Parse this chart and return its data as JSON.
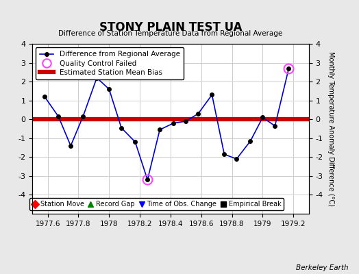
{
  "title": "STONY PLAIN TEST UA",
  "subtitle": "Difference of Station Temperature Data from Regional Average",
  "ylabel_right": "Monthly Temperature Anomaly Difference (°C)",
  "background_color": "#e8e8e8",
  "plot_bg_color": "#ffffff",
  "xlim": [
    1977.5,
    1979.3
  ],
  "ylim": [
    -5,
    4
  ],
  "yticks": [
    -4,
    -3,
    -2,
    -1,
    0,
    1,
    2,
    3,
    4
  ],
  "xticks": [
    1977.6,
    1977.8,
    1978.0,
    1978.2,
    1978.4,
    1978.6,
    1978.8,
    1979.0,
    1979.2
  ],
  "xtick_labels": [
    "1977.6",
    "1977.8",
    "1978",
    "1978.2",
    "1978.4",
    "1978.6",
    "1978.8",
    "1979",
    "1979.2"
  ],
  "bias_line": 0.0,
  "bias_color": "#cc0000",
  "line_color": "#0000cc",
  "marker_color": "#000000",
  "qc_fail_color": "#ff44ff",
  "watermark": "Berkeley Earth",
  "x_data": [
    1977.58,
    1977.67,
    1977.75,
    1977.83,
    1977.92,
    1978.0,
    1978.08,
    1978.17,
    1978.25,
    1978.33,
    1978.42,
    1978.5,
    1978.58,
    1978.67,
    1978.75,
    1978.83,
    1978.92,
    1979.0,
    1979.08,
    1979.17
  ],
  "y_data": [
    1.2,
    0.15,
    -1.4,
    0.15,
    2.2,
    1.6,
    -0.45,
    -1.2,
    -3.2,
    -0.55,
    -0.2,
    -0.1,
    0.3,
    1.3,
    -1.85,
    -2.1,
    -1.15,
    0.1,
    -0.35,
    2.7
  ],
  "qc_fail_indices": [
    8,
    19
  ]
}
